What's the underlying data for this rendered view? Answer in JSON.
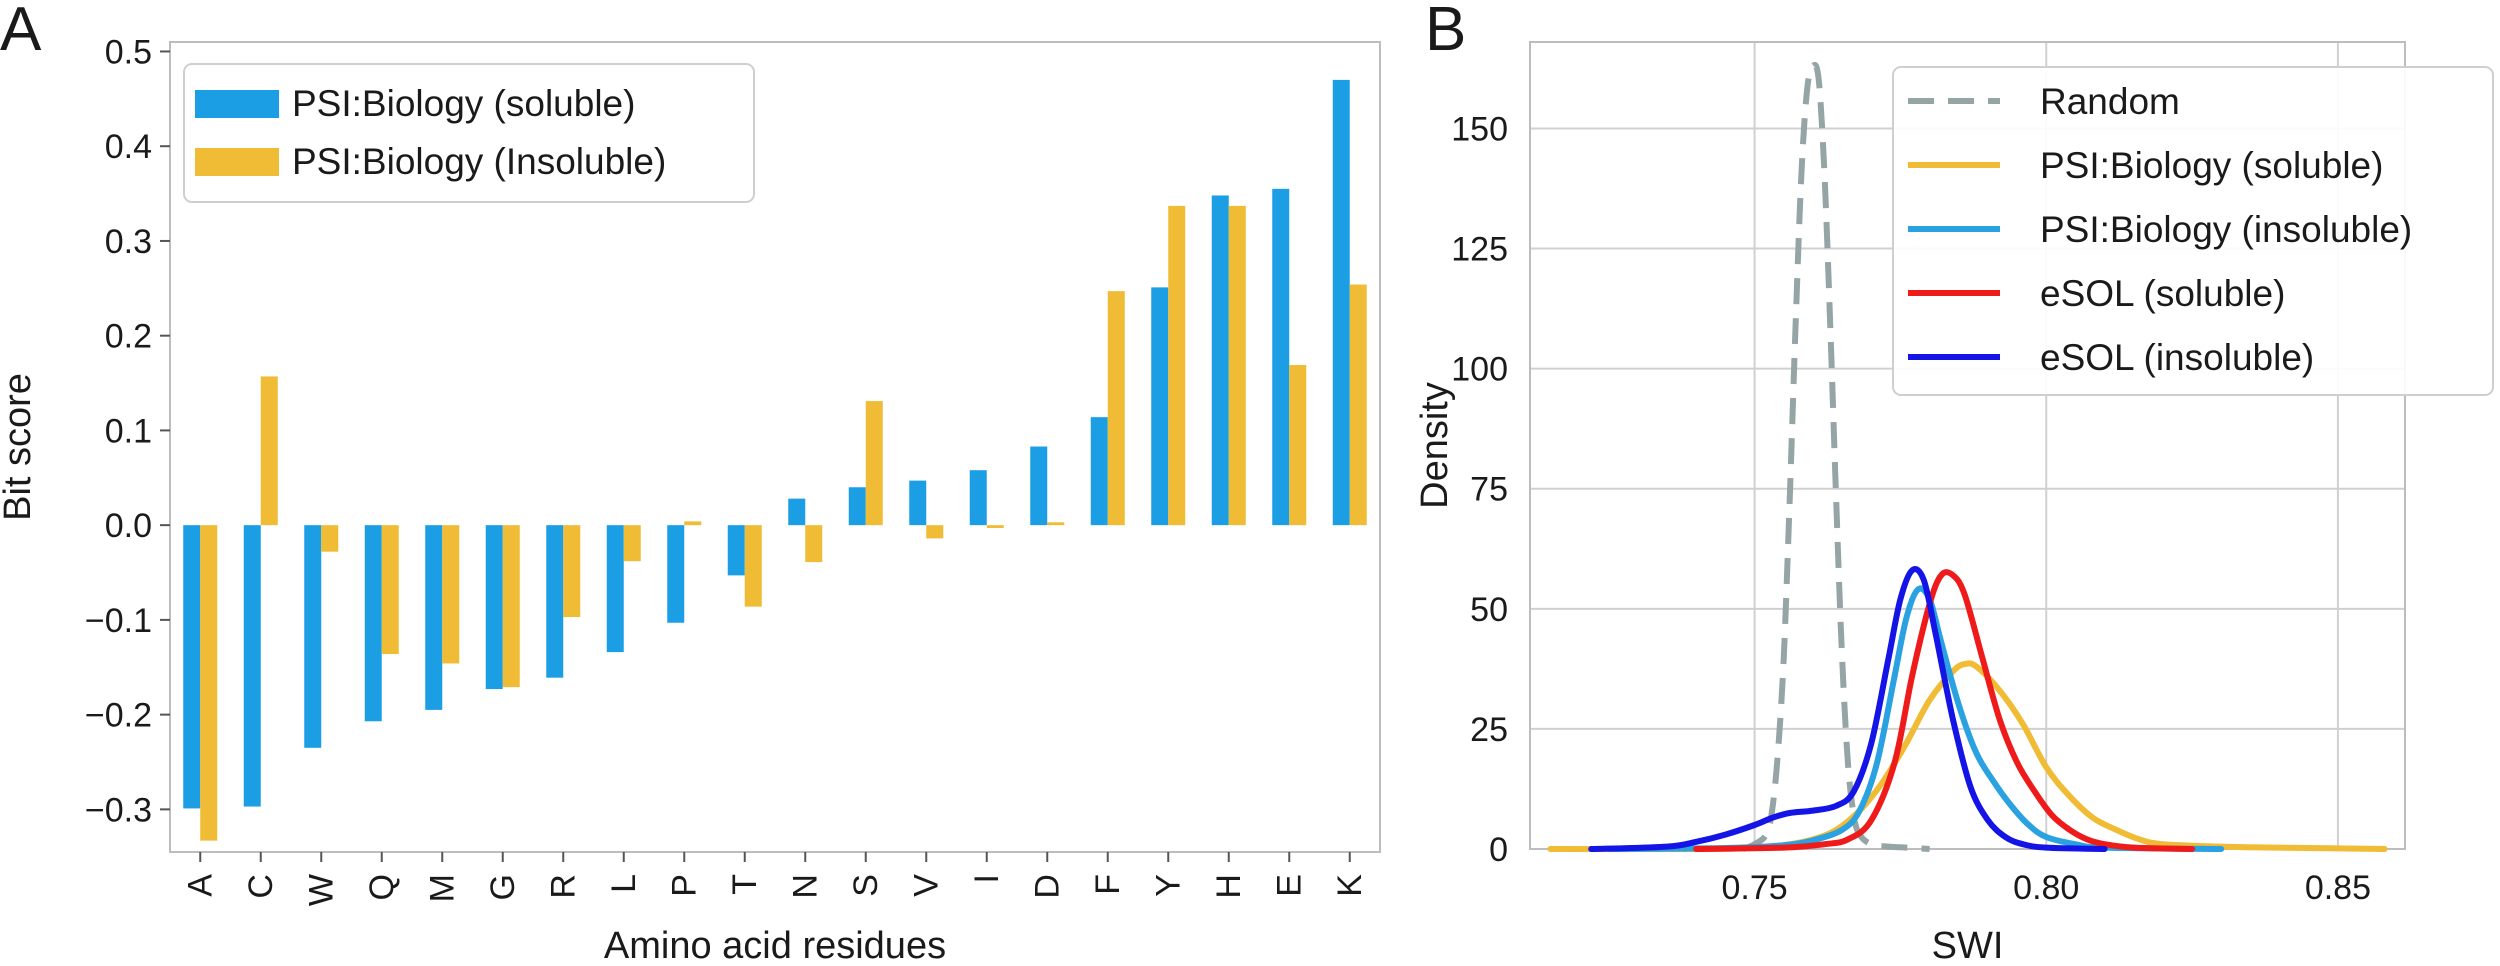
{
  "chart_data": [
    {
      "panel_label": "A",
      "type": "bar",
      "xlabel": "Amino acid residues",
      "ylabel": "Bit score",
      "ylim": [
        -0.345,
        0.51
      ],
      "yticks": [
        -0.3,
        -0.2,
        -0.1,
        0.0,
        0.1,
        0.2,
        0.3,
        0.4,
        0.5
      ],
      "ytick_labels": [
        "−0.3",
        "−0.2",
        "−0.1",
        "0.0",
        "0.1",
        "0.2",
        "0.3",
        "0.4",
        "0.5"
      ],
      "grid": false,
      "legend_position": "top-left",
      "categories": [
        "A",
        "C",
        "W",
        "Q",
        "M",
        "G",
        "R",
        "L",
        "P",
        "T",
        "N",
        "S",
        "V",
        "I",
        "D",
        "F",
        "Y",
        "H",
        "E",
        "K"
      ],
      "series": [
        {
          "name": "PSI:Biology (soluble)",
          "color": "#1b9ee3",
          "values": [
            -0.299,
            -0.297,
            -0.235,
            -0.207,
            -0.195,
            -0.173,
            -0.161,
            -0.134,
            -0.103,
            -0.053,
            0.028,
            0.04,
            0.047,
            0.058,
            0.083,
            0.114,
            0.251,
            0.348,
            0.355,
            0.47
          ]
        },
        {
          "name": "PSI:Biology (Insoluble)",
          "color": "#f0bc35",
          "values": [
            -0.333,
            0.157,
            -0.028,
            -0.136,
            -0.146,
            -0.171,
            -0.097,
            -0.038,
            0.004,
            -0.086,
            -0.039,
            0.131,
            -0.014,
            -0.003,
            0.003,
            0.247,
            0.337,
            0.337,
            0.169,
            0.254
          ]
        }
      ]
    },
    {
      "panel_label": "B",
      "type": "line",
      "xlabel": "SWI",
      "ylabel": "Density",
      "xlim": [
        0.7115,
        0.8615
      ],
      "ylim": [
        0,
        168
      ],
      "xticks": [
        0.75,
        0.8,
        0.85
      ],
      "xtick_labels": [
        "0.75",
        "0.80",
        "0.85"
      ],
      "yticks": [
        0,
        25,
        50,
        75,
        100,
        125,
        150
      ],
      "ytick_labels": [
        "0",
        "25",
        "50",
        "75",
        "100",
        "125",
        "150"
      ],
      "grid": true,
      "legend_position": "top-right",
      "series": [
        {
          "name": "Random",
          "color": "#95a5a6",
          "dashed": true,
          "x": [
            0.748,
            0.75,
            0.752,
            0.753,
            0.754,
            0.755,
            0.756,
            0.757,
            0.758,
            0.759,
            0.76,
            0.761,
            0.762,
            0.763,
            0.764,
            0.765,
            0.766,
            0.767,
            0.768,
            0.77,
            0.773,
            0.776,
            0.78
          ],
          "y": [
            0,
            1,
            3,
            8,
            20,
            40,
            72,
            108,
            140,
            158,
            163,
            160,
            140,
            108,
            72,
            40,
            18,
            7,
            3,
            1,
            0.5,
            0.3,
            0
          ]
        },
        {
          "name": "PSI:Biology (soluble)",
          "color": "#f0bc35",
          "x": [
            0.715,
            0.74,
            0.75,
            0.755,
            0.76,
            0.764,
            0.768,
            0.772,
            0.776,
            0.78,
            0.784,
            0.786,
            0.788,
            0.792,
            0.796,
            0.8,
            0.804,
            0.808,
            0.812,
            0.816,
            0.82,
            0.83,
            0.84,
            0.858
          ],
          "y": [
            0,
            0,
            0.3,
            0.8,
            2,
            4,
            8,
            14,
            22,
            31,
            37,
            38.5,
            38,
            33,
            26,
            17,
            11,
            6.5,
            4,
            2,
            1,
            0.5,
            0.3,
            0
          ]
        },
        {
          "name": "PSI:Biology (insoluble)",
          "color": "#2aa1e0",
          "x": [
            0.725,
            0.745,
            0.755,
            0.76,
            0.765,
            0.768,
            0.771,
            0.774,
            0.776,
            0.778,
            0.78,
            0.782,
            0.785,
            0.788,
            0.791,
            0.794,
            0.797,
            0.8,
            0.805,
            0.81,
            0.83
          ],
          "y": [
            0,
            0.2,
            0.8,
            1.8,
            4,
            8,
            18,
            36,
            48,
            54,
            52,
            43,
            30,
            20,
            14,
            9,
            5,
            2.5,
            1,
            0.3,
            0
          ]
        },
        {
          "name": "eSOL (soluble)",
          "color": "#ef1a1a",
          "x": [
            0.74,
            0.755,
            0.762,
            0.766,
            0.77,
            0.774,
            0.777,
            0.78,
            0.782,
            0.784,
            0.786,
            0.789,
            0.792,
            0.795,
            0.798,
            0.801,
            0.804,
            0.807,
            0.81,
            0.815,
            0.825
          ],
          "y": [
            0,
            0.3,
            1,
            2,
            6,
            18,
            36,
            51,
            57,
            57,
            53,
            40,
            27,
            18,
            12,
            7,
            4,
            2,
            1,
            0.3,
            0
          ]
        },
        {
          "name": "eSOL (insoluble)",
          "color": "#1414e6",
          "x": [
            0.722,
            0.735,
            0.74,
            0.745,
            0.75,
            0.753,
            0.756,
            0.76,
            0.764,
            0.767,
            0.77,
            0.773,
            0.775,
            0.777,
            0.779,
            0.781,
            0.784,
            0.787,
            0.79,
            0.793,
            0.796,
            0.8,
            0.81
          ],
          "y": [
            0,
            0.5,
            1.5,
            3,
            5,
            6.5,
            7.5,
            8,
            9,
            12,
            22,
            40,
            52,
            58,
            56,
            45,
            27,
            13,
            6,
            2.5,
            1,
            0.3,
            0
          ]
        }
      ]
    }
  ]
}
